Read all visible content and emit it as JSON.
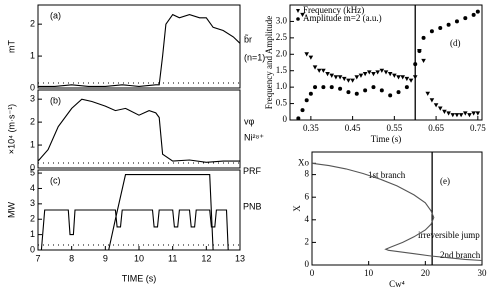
{
  "chart_data": [
    {
      "type": "line",
      "label": "(a)",
      "y_label": "mT",
      "xlim": [
        7,
        13
      ],
      "ylim": [
        0,
        2.6
      ],
      "yticks": [
        0,
        1,
        2
      ],
      "annotations": [
        "b̃r",
        "(n=1)"
      ],
      "series": [
        {
          "color": "#000000",
          "x": [
            7,
            7.5,
            8,
            8.5,
            9,
            9.5,
            10,
            10.5,
            10.6,
            10.7,
            10.8,
            11,
            11.2,
            11.5,
            11.8,
            12,
            12.2,
            12.5,
            12.8,
            13
          ],
          "values": [
            0.05,
            0.05,
            0.1,
            0.05,
            0.05,
            0.1,
            0.05,
            0.1,
            0.1,
            1.0,
            2.0,
            2.3,
            2.2,
            2.3,
            2.2,
            2.2,
            1.9,
            1.8,
            1.6,
            1.4
          ]
        }
      ]
    },
    {
      "type": "line",
      "label": "(b)",
      "y_label": "×10⁴ (m·s⁻¹)",
      "xlim": [
        7,
        13
      ],
      "ylim": [
        0,
        3.4
      ],
      "yticks": [
        0,
        1,
        2,
        3
      ],
      "annotations": [
        "vφ",
        "Ni²⁸⁺"
      ],
      "series": [
        {
          "color": "#000000",
          "x": [
            7,
            7.3,
            7.6,
            8,
            8.3,
            8.6,
            9,
            9.3,
            9.6,
            10,
            10.3,
            10.5,
            10.6,
            10.7,
            11,
            11.5,
            12,
            12.5,
            13
          ],
          "values": [
            0.3,
            0.8,
            1.8,
            2.6,
            3.0,
            2.9,
            2.7,
            2.5,
            2.6,
            2.3,
            2.5,
            2.4,
            2.2,
            0.6,
            0.3,
            0.35,
            0.25,
            0.3,
            0.3
          ]
        }
      ]
    },
    {
      "type": "line",
      "label": "(c)",
      "y_label": "MW",
      "x_label": "TIME (s)",
      "xlim": [
        7,
        13
      ],
      "xticks": [
        7,
        8,
        9,
        10,
        11,
        12,
        13
      ],
      "ylim": [
        0,
        5.2
      ],
      "yticks": [
        0,
        1,
        2,
        3,
        4,
        5
      ],
      "legend": "right",
      "series": [
        {
          "name": "PRF",
          "color": "#000000",
          "x": [
            7,
            9.1,
            9.3,
            9.6,
            12.1,
            12.2,
            13
          ],
          "values": [
            0,
            0,
            2,
            4.9,
            4.9,
            0,
            0
          ]
        },
        {
          "name": "PNB",
          "color": "#000000",
          "x": [
            7,
            7.1,
            7.2,
            7.9,
            7.95,
            8.05,
            8.1,
            9.3,
            9.35,
            9.45,
            9.5,
            10.4,
            10.45,
            10.55,
            10.6,
            11,
            11.05,
            11.15,
            11.2,
            11.5,
            11.55,
            11.65,
            11.7,
            12.1,
            12.15,
            12.25,
            12.3,
            12.6,
            12.65,
            13
          ],
          "values": [
            0,
            0,
            2.6,
            2.6,
            1,
            1,
            2.6,
            2.6,
            1.5,
            1.5,
            2.6,
            2.6,
            1.5,
            1.5,
            2.6,
            2.6,
            1.5,
            1.5,
            2.6,
            2.6,
            1.5,
            1.5,
            2.6,
            2.6,
            1.5,
            1.5,
            2.6,
            2.6,
            0,
            0
          ]
        }
      ]
    },
    {
      "type": "scatter",
      "label": "(d)",
      "x_label": "Time (s)",
      "y_label": "Frequency and Amplitude",
      "xlim": [
        0.3,
        0.76
      ],
      "xticks": [
        0.35,
        0.45,
        0.55,
        0.65,
        0.75
      ],
      "ylim": [
        0,
        3.5
      ],
      "yticks": [
        0,
        0.5,
        {
          "value": 1,
          "label": "1.0"
        },
        1.5,
        {
          "value": 2,
          "label": "2.0"
        },
        2.5,
        {
          "value": 3,
          "label": "3.0"
        }
      ],
      "vline": 0.6,
      "legend": "top-left",
      "series": [
        {
          "name": "Frequency (kHz)",
          "marker": "triangle",
          "color": "#000000",
          "x": [
            0.33,
            0.34,
            0.35,
            0.36,
            0.37,
            0.38,
            0.39,
            0.4,
            0.41,
            0.42,
            0.43,
            0.44,
            0.45,
            0.46,
            0.47,
            0.48,
            0.49,
            0.5,
            0.51,
            0.52,
            0.53,
            0.54,
            0.55,
            0.56,
            0.57,
            0.58,
            0.59,
            0.6,
            0.61,
            0.62,
            0.63,
            0.64,
            0.65,
            0.66,
            0.67,
            0.68,
            0.69,
            0.7,
            0.71,
            0.72,
            0.73,
            0.74,
            0.75
          ],
          "values": [
            3.2,
            2.0,
            1.9,
            1.6,
            1.5,
            1.5,
            1.4,
            1.35,
            1.3,
            1.3,
            1.25,
            1.2,
            1.2,
            1.3,
            1.35,
            1.4,
            1.45,
            1.4,
            1.45,
            1.5,
            1.45,
            1.4,
            1.35,
            1.3,
            1.3,
            1.25,
            1.2,
            1.3,
            2.1,
            1.8,
            0.8,
            0.6,
            0.45,
            0.35,
            0.25,
            0.2,
            0.15,
            0.15,
            0.15,
            0.2,
            0.15,
            0.2,
            0.2
          ]
        },
        {
          "name": "Amplitude m=2 (a.u.)",
          "marker": "circle",
          "color": "#000000",
          "x": [
            0.32,
            0.33,
            0.34,
            0.35,
            0.36,
            0.38,
            0.4,
            0.42,
            0.44,
            0.46,
            0.48,
            0.5,
            0.52,
            0.54,
            0.56,
            0.58,
            0.6,
            0.61,
            0.62,
            0.64,
            0.66,
            0.68,
            0.7,
            0.72,
            0.74,
            0.75
          ],
          "values": [
            0.05,
            0.3,
            0.6,
            0.8,
            1.0,
            1.0,
            1.0,
            0.95,
            0.85,
            0.8,
            0.9,
            1.0,
            0.9,
            0.75,
            0.85,
            1.0,
            1.7,
            2.1,
            2.5,
            2.7,
            2.8,
            2.9,
            3.0,
            3.1,
            3.2,
            3.3
          ]
        }
      ]
    },
    {
      "type": "line",
      "label": "(e)",
      "x_label": "Cw⁴",
      "y_label": "X",
      "xlim": [
        0,
        30
      ],
      "xticks": [
        0,
        10,
        20,
        30
      ],
      "ylim": [
        0,
        10
      ],
      "yticks": [
        0,
        2,
        4,
        6,
        8,
        {
          "value": 9,
          "label": "Xo"
        }
      ],
      "vline": 21.2,
      "annotations": [
        "1st branch",
        "irreversible jump",
        "2nd branch"
      ],
      "series": [
        {
          "color": "#555555",
          "x": [
            0,
            3,
            6,
            9,
            12,
            15,
            18,
            20,
            21,
            21.5,
            21,
            20,
            18,
            16,
            14,
            13,
            13.5,
            15,
            18,
            21,
            24,
            27,
            30
          ],
          "values": [
            9,
            8.8,
            8.5,
            8.1,
            7.6,
            7,
            6.2,
            5.5,
            4.8,
            4.2,
            3.6,
            3.1,
            2.5,
            2.0,
            1.6,
            1.4,
            1.3,
            1.2,
            1.0,
            0.8,
            0.65,
            0.5,
            0.4
          ]
        }
      ]
    }
  ]
}
